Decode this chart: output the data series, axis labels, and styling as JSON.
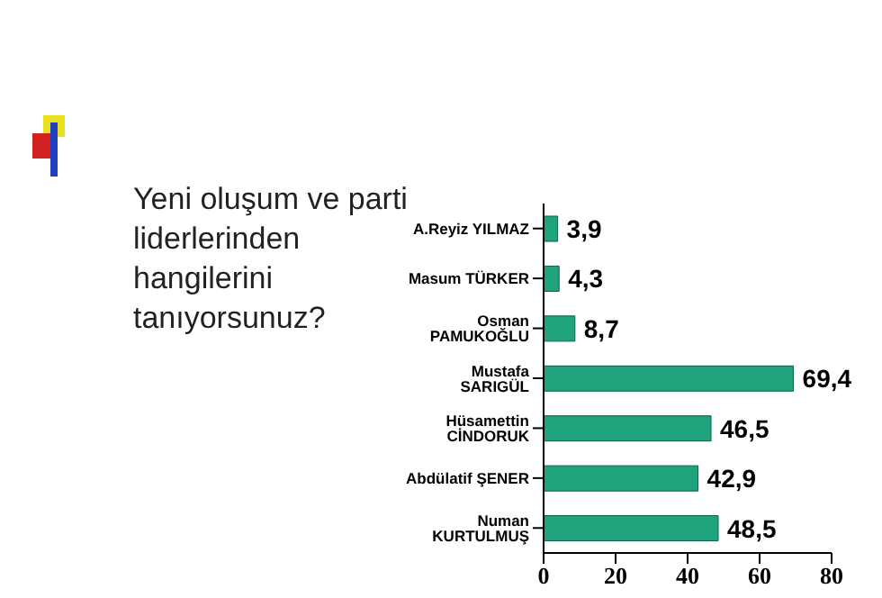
{
  "chart_data": {
    "type": "bar",
    "orientation": "horizontal",
    "title": "Yeni oluşum ve parti liderlerinden hangilerini tanıyorsunuz?",
    "categories": [
      "A.Reyiz YILMAZ",
      "Masum TÜRKER",
      "Osman PAMUKOĞLU",
      "Mustafa SARIGÜL",
      "Hüsamettin CİNDORUK",
      "Abdülatif ŞENER",
      "Numan KURTULMUŞ"
    ],
    "values": [
      3.9,
      4.3,
      8.7,
      69.4,
      46.5,
      42.9,
      48.5
    ],
    "value_labels": [
      "3,9",
      "4,3",
      "8,7",
      "69,4",
      "46,5",
      "42,9",
      "48,5"
    ],
    "color": "#1fa37c",
    "xlim": [
      0,
      80
    ],
    "xticks": [
      0,
      20,
      40,
      60,
      80
    ],
    "grid": false,
    "legend": false
  }
}
